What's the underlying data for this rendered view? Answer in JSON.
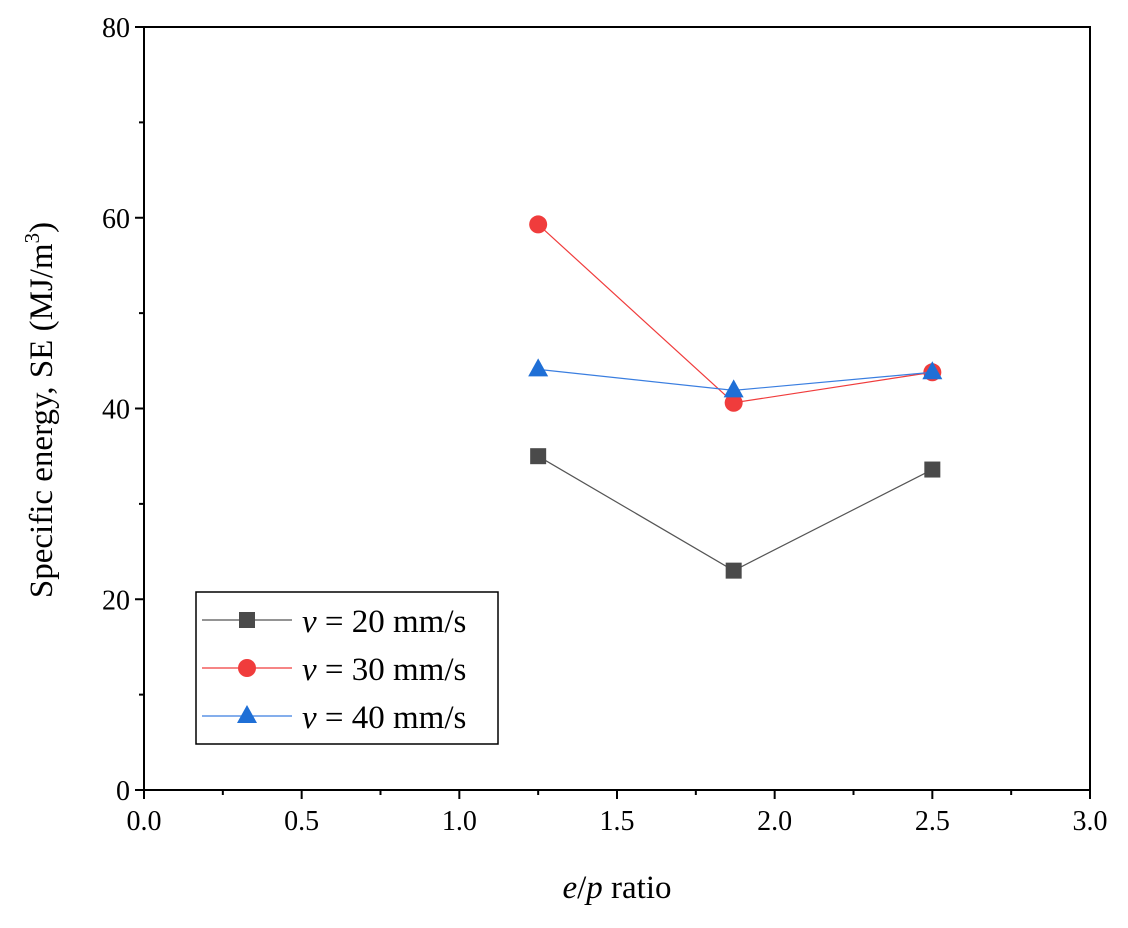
{
  "chart_data": {
    "type": "line",
    "title": "",
    "xlabel": {
      "italic_a": "e",
      "slash": "/",
      "italic_b": "p",
      "rest": " ratio"
    },
    "ylabel": {
      "main": "Specific energy, SE (MJ/m",
      "sup": "3",
      "close": ")"
    },
    "xlim": [
      0,
      3
    ],
    "ylim": [
      0,
      80
    ],
    "xticks": [
      0.0,
      0.5,
      1.0,
      1.5,
      2.0,
      2.5,
      3.0
    ],
    "xtick_labels": [
      "0.0",
      "0.5",
      "1.0",
      "1.5",
      "2.0",
      "2.5",
      "3.0"
    ],
    "yticks": [
      0,
      20,
      40,
      60,
      80
    ],
    "ytick_labels": [
      "0",
      "20",
      "40",
      "60",
      "80"
    ],
    "grid": false,
    "legend_position": "bottom-left",
    "x": [
      1.25,
      1.87,
      2.5
    ],
    "series": [
      {
        "name_var": "v",
        "name_rest": " = 20 mm/s",
        "marker": "square",
        "color": "#4a4a4a",
        "line_color": "#555555",
        "values": [
          35.0,
          23.0,
          33.6
        ]
      },
      {
        "name_var": "v",
        "name_rest": " = 30 mm/s",
        "marker": "circle",
        "color": "#f03c3c",
        "line_color": "#f03c3c",
        "values": [
          59.3,
          40.6,
          43.8
        ]
      },
      {
        "name_var": "v",
        "name_rest": " = 40 mm/s",
        "marker": "triangle",
        "color": "#1f6fd6",
        "line_color": "#3a7ee0",
        "values": [
          44.1,
          41.9,
          43.8
        ]
      }
    ]
  }
}
